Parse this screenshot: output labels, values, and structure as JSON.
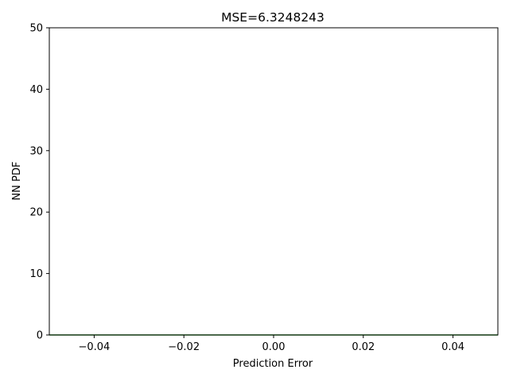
{
  "chart_data": {
    "type": "line",
    "title": "MSE=6.3248243",
    "xlabel": "Prediction Error",
    "ylabel": "NN PDF",
    "xlim": [
      -0.05,
      0.05
    ],
    "ylim": [
      0,
      50
    ],
    "xticks": [
      -0.04,
      -0.02,
      0.0,
      0.02,
      0.04
    ],
    "xtick_labels": [
      "−0.04",
      "−0.02",
      "0.00",
      "0.02",
      "0.04"
    ],
    "yticks": [
      0,
      10,
      20,
      30,
      40,
      50
    ],
    "ytick_labels": [
      "0",
      "10",
      "20",
      "30",
      "40",
      "50"
    ],
    "grid": false,
    "series": [
      {
        "color": "#2ca02c",
        "x": [
          -0.05,
          0.05
        ],
        "y": [
          0,
          0
        ]
      }
    ]
  }
}
